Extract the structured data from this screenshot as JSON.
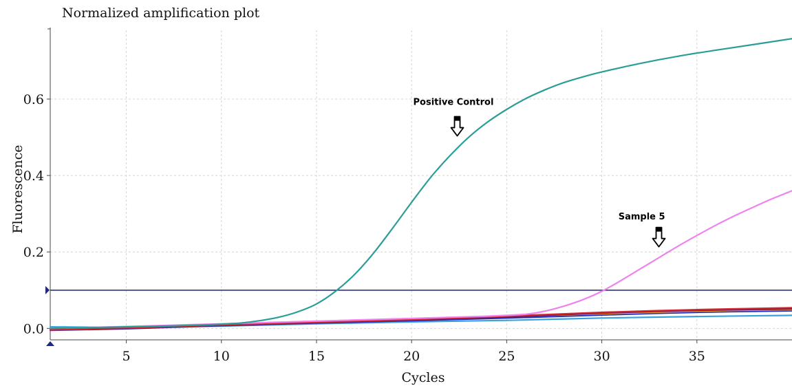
{
  "chart_data": {
    "type": "line",
    "title": "Normalized amplification plot",
    "xlabel": "Cycles",
    "ylabel": "Fluorescence",
    "xlim": [
      1,
      40
    ],
    "ylim": [
      -0.03,
      0.78
    ],
    "x_ticks": [
      5,
      10,
      15,
      20,
      25,
      30,
      35
    ],
    "y_ticks": [
      0.0,
      0.2,
      0.4,
      0.6
    ],
    "y_tick_labels": [
      "0.0",
      "0.2",
      "0.4",
      "0.6"
    ],
    "grid": true,
    "threshold": {
      "value": 0.1,
      "color": "#2e3192"
    },
    "series": [
      {
        "color": "#2a9d96",
        "x": [
          1,
          3,
          5,
          7,
          9,
          10,
          11,
          12,
          13,
          14,
          15,
          16,
          17,
          18,
          19,
          20,
          21,
          22,
          23,
          24,
          25,
          26,
          27,
          28,
          29,
          30,
          32,
          34,
          36,
          38,
          40
        ],
        "y": [
          0.0,
          0.002,
          0.004,
          0.006,
          0.009,
          0.011,
          0.014,
          0.02,
          0.029,
          0.043,
          0.064,
          0.097,
          0.141,
          0.197,
          0.262,
          0.33,
          0.395,
          0.451,
          0.5,
          0.54,
          0.573,
          0.601,
          0.624,
          0.643,
          0.658,
          0.671,
          0.693,
          0.712,
          0.728,
          0.743,
          0.758
        ]
      },
      {
        "color": "#ee82ee",
        "x": [
          1,
          5,
          10,
          15,
          20,
          22,
          24,
          26,
          27,
          28,
          29,
          30,
          31,
          32,
          33,
          34,
          35,
          36,
          37,
          38,
          39,
          40
        ],
        "y": [
          0.0,
          0.005,
          0.012,
          0.019,
          0.026,
          0.029,
          0.032,
          0.037,
          0.045,
          0.058,
          0.075,
          0.097,
          0.125,
          0.155,
          0.185,
          0.215,
          0.243,
          0.27,
          0.295,
          0.318,
          0.34,
          0.36
        ]
      },
      {
        "color": "#d2272f",
        "x": [
          1,
          5,
          10,
          15,
          20,
          25,
          30,
          35,
          40
        ],
        "y": [
          -0.004,
          0.001,
          0.009,
          0.016,
          0.023,
          0.032,
          0.042,
          0.049,
          0.054
        ]
      },
      {
        "color": "#6a1b5a",
        "x": [
          1,
          5,
          10,
          15,
          20,
          25,
          30,
          35,
          40
        ],
        "y": [
          -0.003,
          0.0,
          0.008,
          0.015,
          0.022,
          0.03,
          0.04,
          0.047,
          0.051
        ]
      },
      {
        "color": "#f5a040",
        "x": [
          1,
          5,
          10,
          15,
          20,
          25,
          30,
          35,
          40
        ],
        "y": [
          -0.002,
          0.003,
          0.011,
          0.019,
          0.025,
          0.031,
          0.038,
          0.045,
          0.049
        ]
      },
      {
        "color": "#1f2fbf",
        "x": [
          1,
          5,
          10,
          15,
          20,
          25,
          30,
          35,
          40
        ],
        "y": [
          -0.005,
          -0.001,
          0.007,
          0.014,
          0.02,
          0.027,
          0.035,
          0.042,
          0.046
        ]
      },
      {
        "color": "#3aa0e0",
        "x": [
          1,
          5,
          10,
          15,
          20,
          25,
          30,
          35,
          40
        ],
        "y": [
          0.004,
          0.003,
          0.006,
          0.012,
          0.017,
          0.021,
          0.027,
          0.031,
          0.034
        ]
      }
    ],
    "annotations": [
      {
        "text": "Positive Control",
        "label_x": 22.2,
        "label_y": 0.585,
        "arrow_x": 22.4,
        "arrow_y": 0.5
      },
      {
        "text": "Sample 5",
        "label_x": 32.1,
        "label_y": 0.285,
        "arrow_x": 33.0,
        "arrow_y": 0.21
      }
    ]
  }
}
